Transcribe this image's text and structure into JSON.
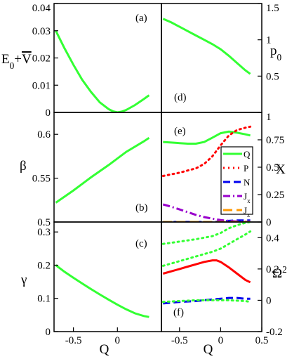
{
  "chart_data": [
    {
      "id": "a",
      "type": "line",
      "panel_label": "(a)",
      "ylabel": "E₀+V̄",
      "xlim": [
        -0.72,
        0.5
      ],
      "ylim": [
        0,
        0.04
      ],
      "yticks": [
        0,
        0.01,
        0.02,
        0.03,
        0.04
      ],
      "ytick_labels": [
        "0",
        "0.01",
        "0.02",
        "0.03",
        "0.04"
      ],
      "y_axis_side": "left",
      "series": [
        {
          "color": "#33ff33",
          "dash": "solid",
          "x": [
            -0.7,
            -0.6,
            -0.5,
            -0.4,
            -0.3,
            -0.2,
            -0.1,
            -0.05,
            0.0,
            0.05,
            0.1,
            0.2,
            0.3,
            0.36
          ],
          "y": [
            0.03,
            0.0235,
            0.0175,
            0.012,
            0.0075,
            0.0037,
            0.0012,
            0.0004,
            0.0,
            0.0003,
            0.0009,
            0.0027,
            0.0049,
            0.0063
          ]
        }
      ]
    },
    {
      "id": "d",
      "type": "line",
      "panel_label": "(d)",
      "ylabel": "p₀",
      "xlim": [
        -0.72,
        0.5
      ],
      "ylim": [
        0,
        1.5
      ],
      "yticks": [
        0.5,
        1,
        1.5
      ],
      "ytick_labels": [
        "0.5",
        "1",
        "1.5"
      ],
      "y_axis_side": "right",
      "series": [
        {
          "color": "#33ff33",
          "dash": "solid",
          "x": [
            -0.7,
            -0.6,
            -0.5,
            -0.4,
            -0.3,
            -0.2,
            -0.1,
            0.0,
            0.1,
            0.2,
            0.3,
            0.36
          ],
          "y": [
            1.29,
            1.24,
            1.18,
            1.12,
            1.06,
            1.0,
            0.94,
            0.87,
            0.78,
            0.68,
            0.58,
            0.53
          ]
        }
      ]
    },
    {
      "id": "b",
      "type": "line",
      "panel_label": "(b)",
      "ylabel": "β",
      "xlim": [
        -0.72,
        0.5
      ],
      "ylim": [
        0.5,
        0.625
      ],
      "yticks": [
        0.5,
        0.55,
        0.6
      ],
      "ytick_labels": [
        "0.5",
        "0.55",
        "0.6"
      ],
      "y_axis_side": "left",
      "series": [
        {
          "color": "#33ff33",
          "dash": "solid",
          "x": [
            -0.7,
            -0.5,
            -0.3,
            -0.1,
            0.1,
            0.3,
            0.36
          ],
          "y": [
            0.522,
            0.536,
            0.551,
            0.565,
            0.58,
            0.592,
            0.596
          ]
        }
      ]
    },
    {
      "id": "e",
      "type": "line",
      "panel_label": "(e)",
      "ylabel": "X",
      "xlim": [
        -0.72,
        0.5
      ],
      "ylim": [
        0,
        1
      ],
      "yticks": [
        0,
        0.25,
        0.5,
        0.75,
        1
      ],
      "ytick_labels": [
        "0",
        "0.25",
        "0.5",
        "0.75",
        "1"
      ],
      "y_axis_side": "right",
      "legend": {
        "placement": "right",
        "entries": [
          "Q",
          "P",
          "N",
          "Jₓ",
          "J_z"
        ]
      },
      "series": [
        {
          "name": "Q",
          "color": "#33ff33",
          "dash": "solid",
          "x": [
            -0.7,
            -0.6,
            -0.5,
            -0.4,
            -0.3,
            -0.2,
            -0.1,
            0.0,
            0.1,
            0.2,
            0.3,
            0.36
          ],
          "y": [
            0.73,
            0.725,
            0.72,
            0.715,
            0.715,
            0.73,
            0.77,
            0.81,
            0.825,
            0.815,
            0.8,
            0.79
          ]
        },
        {
          "name": "P",
          "color": "#ff0000",
          "dash": "dot",
          "x": [
            -0.7,
            -0.5,
            -0.3,
            -0.2,
            -0.1,
            0.0,
            0.1,
            0.2,
            0.3,
            0.36
          ],
          "y": [
            0.42,
            0.45,
            0.49,
            0.53,
            0.6,
            0.7,
            0.79,
            0.84,
            0.86,
            0.87
          ]
        },
        {
          "name": "N",
          "color": "#0000ee",
          "dash": "dash",
          "x": [
            -0.7,
            -0.4,
            -0.1,
            0.0,
            0.1,
            0.2,
            0.3,
            0.36
          ],
          "y": [
            0.0,
            0.0,
            0.0,
            0.005,
            0.01,
            0.015,
            0.015,
            0.015
          ]
        },
        {
          "name": "Jₓ",
          "color": "#9900cc",
          "dash": "dashdot",
          "x": [
            -0.7,
            -0.6,
            -0.5,
            -0.4,
            -0.3,
            -0.2,
            -0.1,
            0.0,
            0.1,
            0.2,
            0.3,
            0.36
          ],
          "y": [
            0.16,
            0.14,
            0.115,
            0.09,
            0.065,
            0.045,
            0.03,
            0.018,
            0.01,
            0.005,
            0.003,
            0.002
          ]
        },
        {
          "name": "J_z",
          "color": "#ff9900",
          "dash": "longdash",
          "x": [
            -0.7,
            -0.4,
            -0.1,
            0.2,
            0.36
          ],
          "y": [
            0.0,
            0.0,
            0.0,
            0.0,
            0.0
          ]
        }
      ]
    },
    {
      "id": "c",
      "type": "line",
      "panel_label": "(c)",
      "ylabel": "γ",
      "xlabel": "Q",
      "xlim": [
        -0.72,
        0.5
      ],
      "ylim": [
        0,
        0.33
      ],
      "yticks": [
        0,
        0.1,
        0.2,
        0.3
      ],
      "ytick_labels": [
        "0",
        "0.1",
        "0.2",
        "0.3"
      ],
      "xticks": [
        -0.5,
        0
      ],
      "xtick_labels": [
        "-0.5",
        "0"
      ],
      "y_axis_side": "left",
      "series": [
        {
          "color": "#33ff33",
          "dash": "solid",
          "x": [
            -0.7,
            -0.6,
            -0.5,
            -0.4,
            -0.3,
            -0.2,
            -0.1,
            0.0,
            0.1,
            0.2,
            0.3,
            0.36
          ],
          "y": [
            0.2,
            0.18,
            0.162,
            0.145,
            0.128,
            0.112,
            0.096,
            0.081,
            0.067,
            0.055,
            0.047,
            0.044
          ]
        }
      ]
    },
    {
      "id": "f",
      "type": "line",
      "panel_label": "(f)",
      "ylabel": "Ω²",
      "xlabel": "Q",
      "xlim": [
        -0.72,
        0.5
      ],
      "ylim": [
        -0.2,
        0.5
      ],
      "yticks": [
        -0.2,
        0,
        0.2,
        0.4
      ],
      "ytick_labels": [
        "-0.2",
        "0",
        "0.2",
        "0.4"
      ],
      "xticks": [
        -0.5,
        0,
        0.5
      ],
      "xtick_labels": [
        "-0.5",
        "0",
        "0.5"
      ],
      "y_axis_side": "right",
      "series": [
        {
          "color": "#33ff33",
          "dash": "dot",
          "x": [
            -0.7,
            -0.5,
            -0.3,
            -0.1,
            0.0,
            0.1,
            0.2,
            0.3,
            0.36
          ],
          "y": [
            0.36,
            0.375,
            0.39,
            0.41,
            0.43,
            0.46,
            0.48,
            0.495,
            0.5
          ]
        },
        {
          "color": "#33ff33",
          "dash": "dot",
          "x": [
            -0.7,
            -0.5,
            -0.3,
            -0.1,
            0.0,
            0.1,
            0.2,
            0.3,
            0.36
          ],
          "y": [
            0.22,
            0.25,
            0.28,
            0.31,
            0.33,
            0.36,
            0.39,
            0.42,
            0.44
          ]
        },
        {
          "color": "#ff0000",
          "dash": "solid",
          "x": [
            -0.7,
            -0.6,
            -0.5,
            -0.4,
            -0.3,
            -0.2,
            -0.1,
            -0.05,
            0.0,
            0.1,
            0.2,
            0.3,
            0.36
          ],
          "y": [
            0.17,
            0.185,
            0.2,
            0.215,
            0.23,
            0.245,
            0.255,
            0.255,
            0.245,
            0.21,
            0.17,
            0.13,
            0.115
          ]
        },
        {
          "color": "#0000ee",
          "dash": "dash",
          "x": [
            -0.7,
            -0.5,
            -0.3,
            -0.1,
            0.0,
            0.1,
            0.2,
            0.3,
            0.36
          ],
          "y": [
            -0.02,
            -0.01,
            -0.005,
            0.005,
            0.01,
            0.015,
            0.015,
            0.01,
            0.01
          ]
        },
        {
          "color": "#33ff33",
          "dash": "dot",
          "x": [
            -0.7,
            -0.5,
            -0.3,
            -0.1,
            0.1,
            0.3,
            0.36
          ],
          "y": [
            -0.01,
            -0.005,
            0.0,
            0.0,
            0.0,
            -0.005,
            -0.01
          ]
        }
      ]
    }
  ]
}
